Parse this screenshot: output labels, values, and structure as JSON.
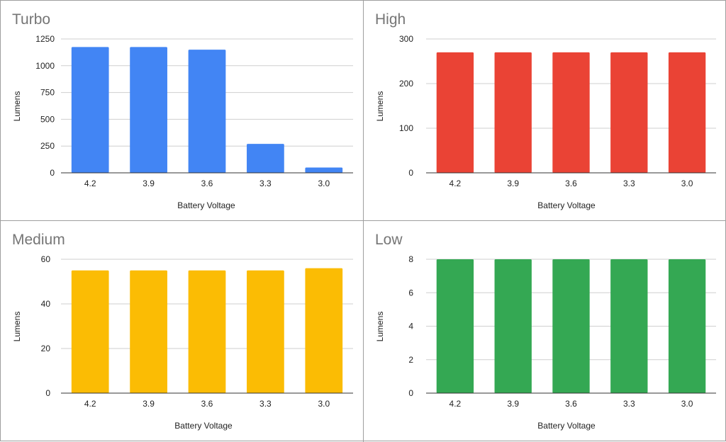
{
  "chart_data": [
    {
      "type": "bar",
      "title": "Turbo",
      "xlabel": "Battery Voltage",
      "ylabel": "Lumens",
      "categories": [
        "4.2",
        "3.9",
        "3.6",
        "3.3",
        "3.0"
      ],
      "values": [
        1175,
        1175,
        1150,
        270,
        50
      ],
      "ylim": [
        0,
        1250
      ],
      "yticks": [
        0,
        250,
        500,
        750,
        1000,
        1250
      ],
      "color": "#4285f4"
    },
    {
      "type": "bar",
      "title": "High",
      "xlabel": "Battery Voltage",
      "ylabel": "Lumens",
      "categories": [
        "4.2",
        "3.9",
        "3.6",
        "3.3",
        "3.0"
      ],
      "values": [
        270,
        270,
        270,
        270,
        270
      ],
      "ylim": [
        0,
        300
      ],
      "yticks": [
        0,
        100,
        200,
        300
      ],
      "color": "#ea4335"
    },
    {
      "type": "bar",
      "title": "Medium",
      "xlabel": "Battery Voltage",
      "ylabel": "Lumens",
      "categories": [
        "4.2",
        "3.9",
        "3.6",
        "3.3",
        "3.0"
      ],
      "values": [
        55,
        55,
        55,
        55,
        56
      ],
      "ylim": [
        0,
        60
      ],
      "yticks": [
        0,
        20,
        40,
        60
      ],
      "color": "#fbbc04"
    },
    {
      "type": "bar",
      "title": "Low",
      "xlabel": "Battery Voltage",
      "ylabel": "Lumens",
      "categories": [
        "4.2",
        "3.9",
        "3.6",
        "3.3",
        "3.0"
      ],
      "values": [
        8,
        8,
        8,
        8,
        8
      ],
      "ylim": [
        0,
        8
      ],
      "yticks": [
        0,
        2,
        4,
        6,
        8
      ],
      "color": "#34a853"
    }
  ]
}
